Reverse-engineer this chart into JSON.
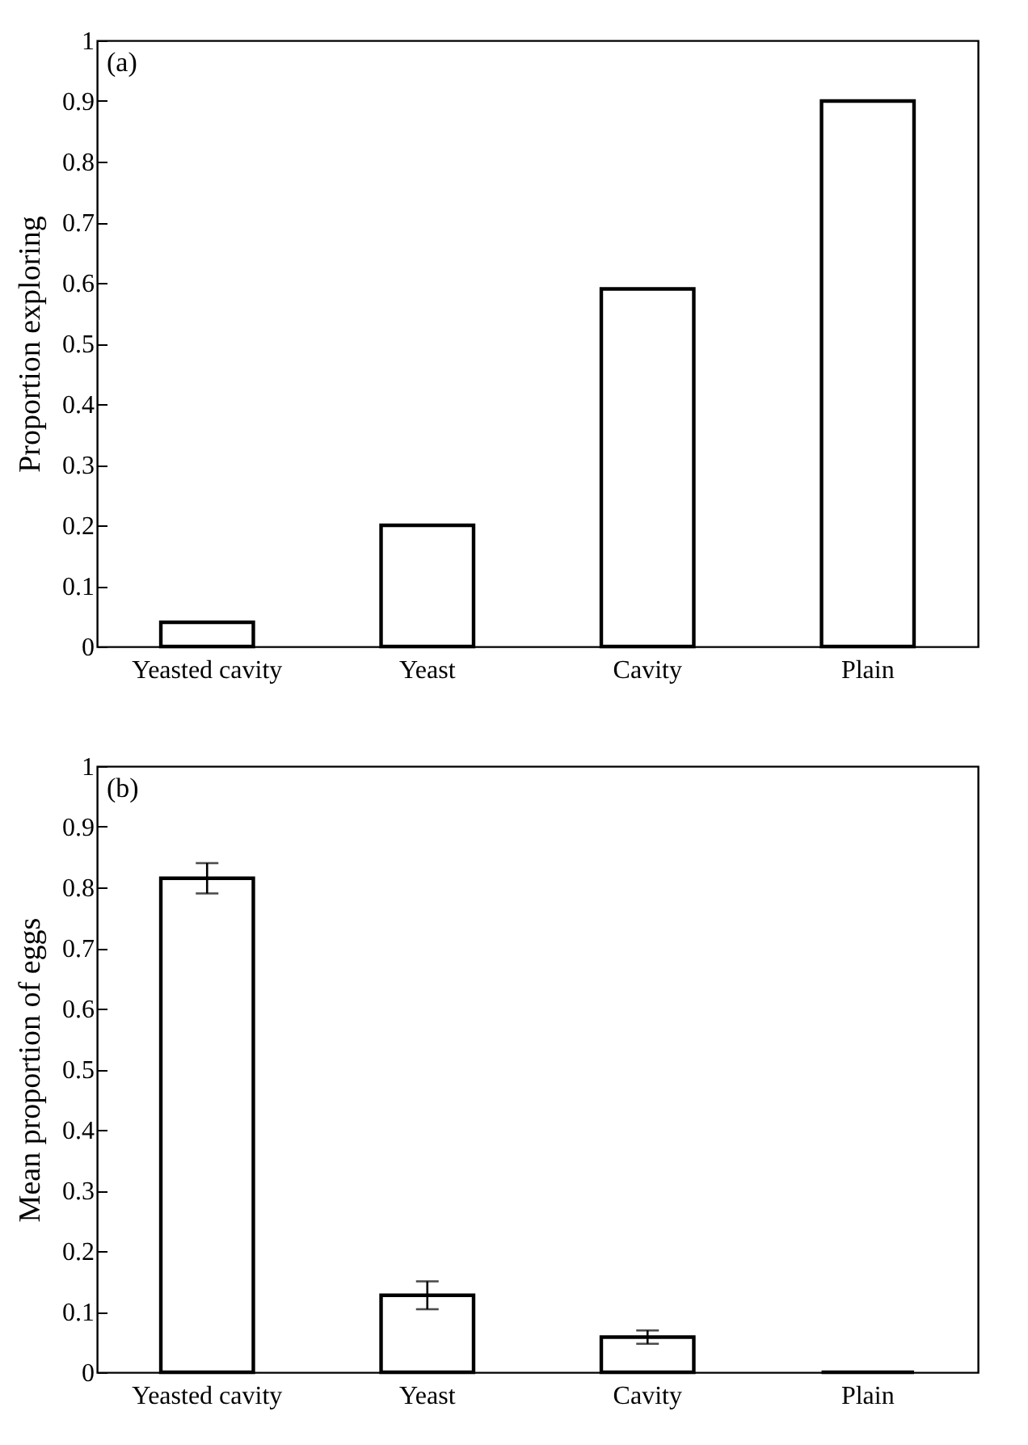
{
  "chart_data": [
    {
      "type": "bar",
      "ylabel": "Proportion exploring",
      "annotations": [
        "(a)"
      ],
      "categories": [
        "Yeasted cavity",
        "Yeast",
        "Cavity",
        "Plain"
      ],
      "values": [
        0.04,
        0.2,
        0.59,
        0.9
      ],
      "color": "#000000",
      "ylim": [
        0,
        1
      ],
      "yticks": [
        0,
        0.1,
        0.2,
        0.3,
        0.4,
        0.5,
        0.6,
        0.7,
        0.8,
        0.9,
        1
      ],
      "grid": false
    },
    {
      "type": "bar",
      "ylabel": "Mean proportion of eggs",
      "annotations": [
        "(b)"
      ],
      "categories": [
        "Yeasted cavity",
        "Yeast",
        "Cavity",
        "Plain"
      ],
      "values": [
        0.815,
        0.127,
        0.058,
        0
      ],
      "errors": [
        0.025,
        0.023,
        0.011,
        null
      ],
      "color": "#000000",
      "ylim": [
        0,
        1
      ],
      "yticks": [
        0,
        0.1,
        0.2,
        0.3,
        0.4,
        0.5,
        0.6,
        0.7,
        0.8,
        0.9,
        1
      ],
      "grid": false
    }
  ]
}
